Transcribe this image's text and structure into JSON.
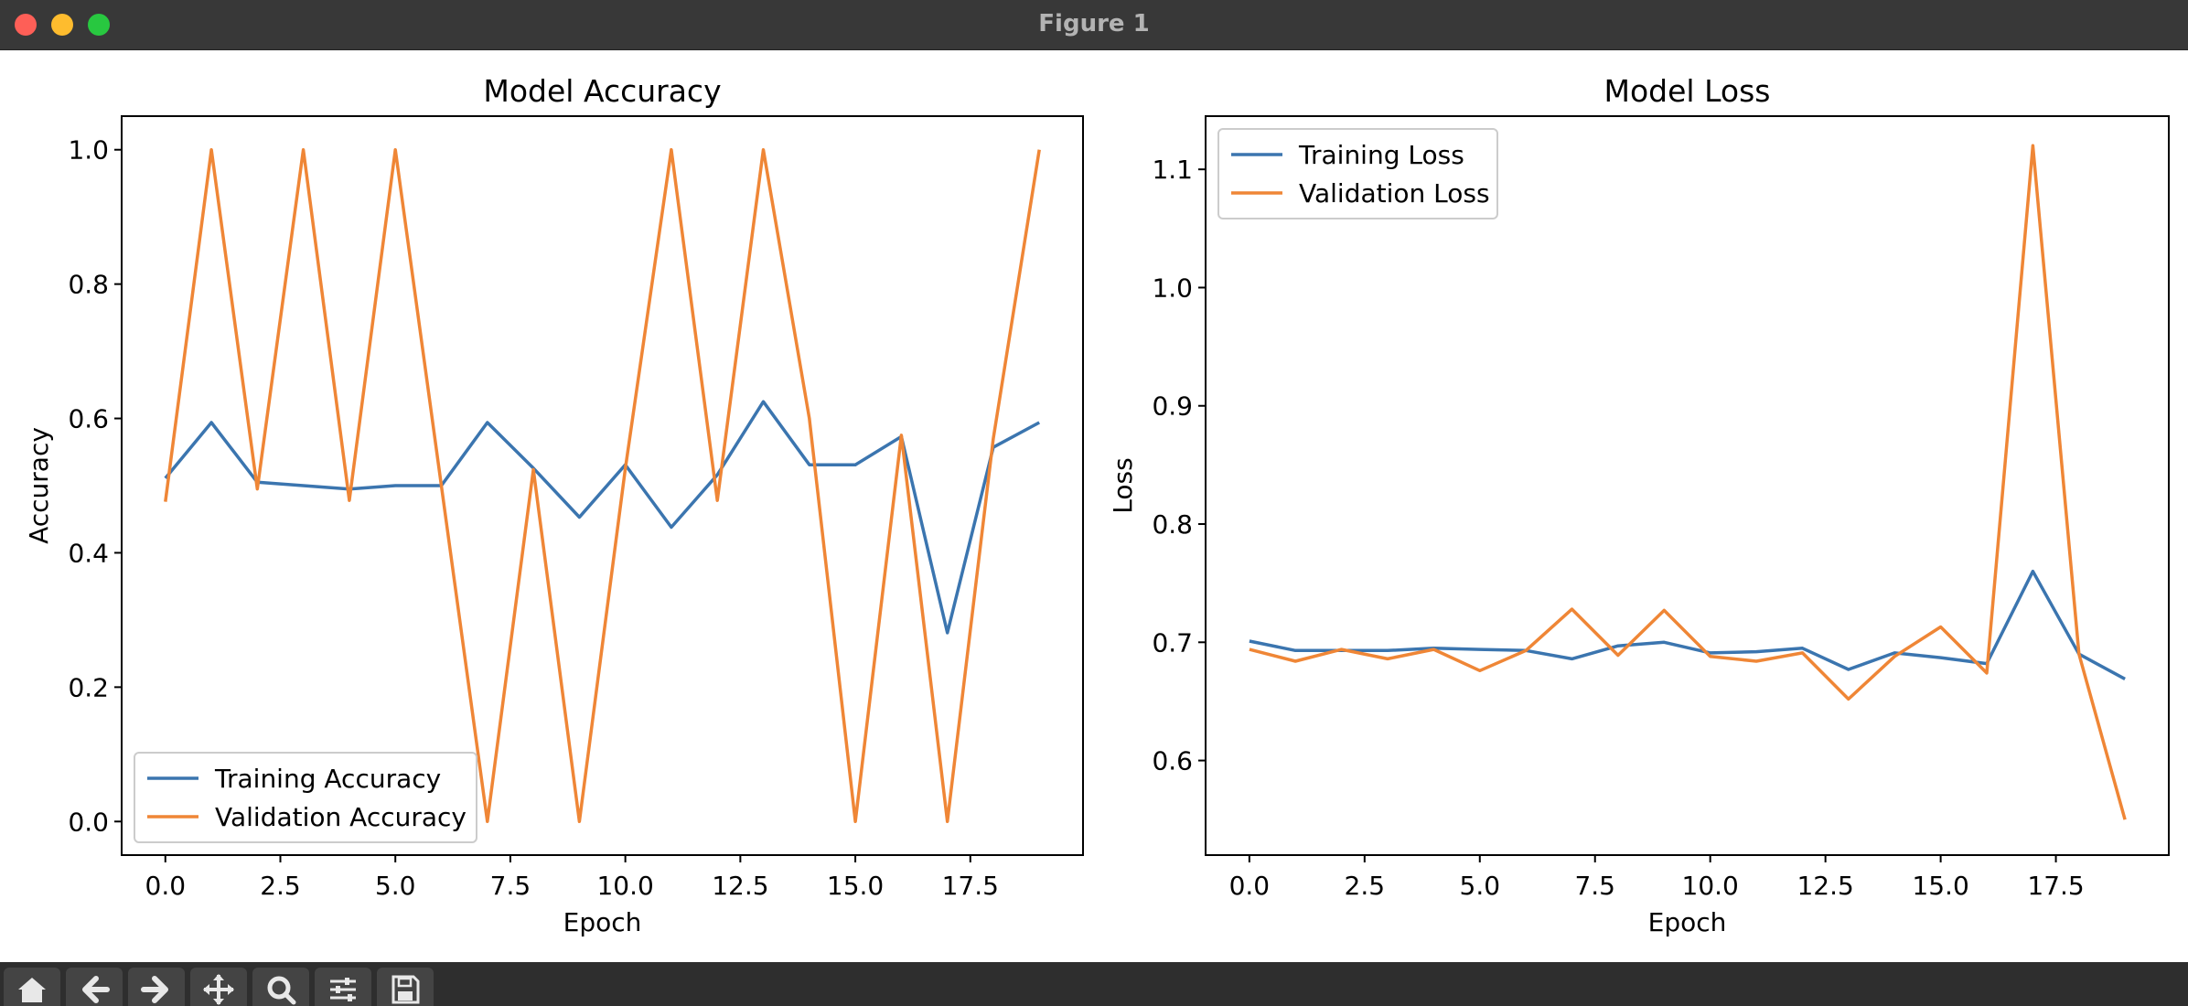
{
  "window": {
    "title": "Figure 1"
  },
  "toolbar": {
    "items": [
      {
        "icon": "home-icon"
      },
      {
        "icon": "back-arrow-icon"
      },
      {
        "icon": "forward-arrow-icon"
      },
      {
        "icon": "pan-icon"
      },
      {
        "icon": "zoom-icon"
      },
      {
        "icon": "configure-subplots-icon"
      },
      {
        "icon": "save-icon"
      }
    ]
  },
  "colors": {
    "training": "#3b75af",
    "validation": "#ef8636"
  },
  "chart_data": [
    {
      "type": "line",
      "title": "Model Accuracy",
      "xlabel": "Epoch",
      "ylabel": "Accuracy",
      "xlim": [
        -0.95,
        19.95
      ],
      "ylim": [
        -0.05,
        1.05
      ],
      "xticks": [
        0.0,
        2.5,
        5.0,
        7.5,
        10.0,
        12.5,
        15.0,
        17.5
      ],
      "xtick_labels": [
        "0.0",
        "2.5",
        "5.0",
        "7.5",
        "10.0",
        "12.5",
        "15.0",
        "17.5"
      ],
      "yticks": [
        0.0,
        0.2,
        0.4,
        0.6,
        0.8,
        1.0
      ],
      "ytick_labels": [
        "0.0",
        "0.2",
        "0.4",
        "0.6",
        "0.8",
        "1.0"
      ],
      "grid": false,
      "legend": "lower-left",
      "x": [
        0,
        1,
        2,
        3,
        4,
        5,
        6,
        7,
        8,
        9,
        10,
        11,
        12,
        13,
        14,
        15,
        16,
        17,
        18,
        19
      ],
      "series": [
        {
          "name": "Training Accuracy",
          "color": "#3b75af",
          "values": [
            0.511,
            0.594,
            0.505,
            0.5,
            0.495,
            0.5,
            0.5,
            0.594,
            0.526,
            0.453,
            0.531,
            0.438,
            0.516,
            0.625,
            0.531,
            0.531,
            0.573,
            0.281,
            0.557,
            0.594
          ]
        },
        {
          "name": "Validation Accuracy",
          "color": "#ef8636",
          "values": [
            0.476,
            1.0,
            0.495,
            1.0,
            0.478,
            1.0,
            0.5,
            0.0,
            0.524,
            0.0,
            0.525,
            1.0,
            0.478,
            1.0,
            0.6,
            0.0,
            0.575,
            0.0,
            0.57,
            1.0
          ]
        }
      ]
    },
    {
      "type": "line",
      "title": "Model Loss",
      "xlabel": "Epoch",
      "ylabel": "Loss",
      "xlim": [
        -0.95,
        19.95
      ],
      "ylim": [
        0.52,
        1.145
      ],
      "xticks": [
        0.0,
        2.5,
        5.0,
        7.5,
        10.0,
        12.5,
        15.0,
        17.5
      ],
      "xtick_labels": [
        "0.0",
        "2.5",
        "5.0",
        "7.5",
        "10.0",
        "12.5",
        "15.0",
        "17.5"
      ],
      "yticks": [
        0.6,
        0.7,
        0.8,
        0.9,
        1.0,
        1.1
      ],
      "ytick_labels": [
        "0.6",
        "0.7",
        "0.8",
        "0.9",
        "1.0",
        "1.1"
      ],
      "grid": false,
      "legend": "upper-left",
      "x": [
        0,
        1,
        2,
        3,
        4,
        5,
        6,
        7,
        8,
        9,
        10,
        11,
        12,
        13,
        14,
        15,
        16,
        17,
        18,
        19
      ],
      "series": [
        {
          "name": "Training Loss",
          "color": "#3b75af",
          "values": [
            0.701,
            0.693,
            0.693,
            0.693,
            0.695,
            0.694,
            0.693,
            0.686,
            0.697,
            0.7,
            0.691,
            0.692,
            0.695,
            0.677,
            0.691,
            0.687,
            0.682,
            0.76,
            0.69,
            0.669
          ]
        },
        {
          "name": "Validation Loss",
          "color": "#ef8636",
          "values": [
            0.694,
            0.684,
            0.694,
            0.686,
            0.694,
            0.676,
            0.693,
            0.728,
            0.689,
            0.727,
            0.688,
            0.684,
            0.691,
            0.652,
            0.688,
            0.713,
            0.674,
            1.12,
            0.69,
            0.55
          ]
        }
      ]
    }
  ]
}
